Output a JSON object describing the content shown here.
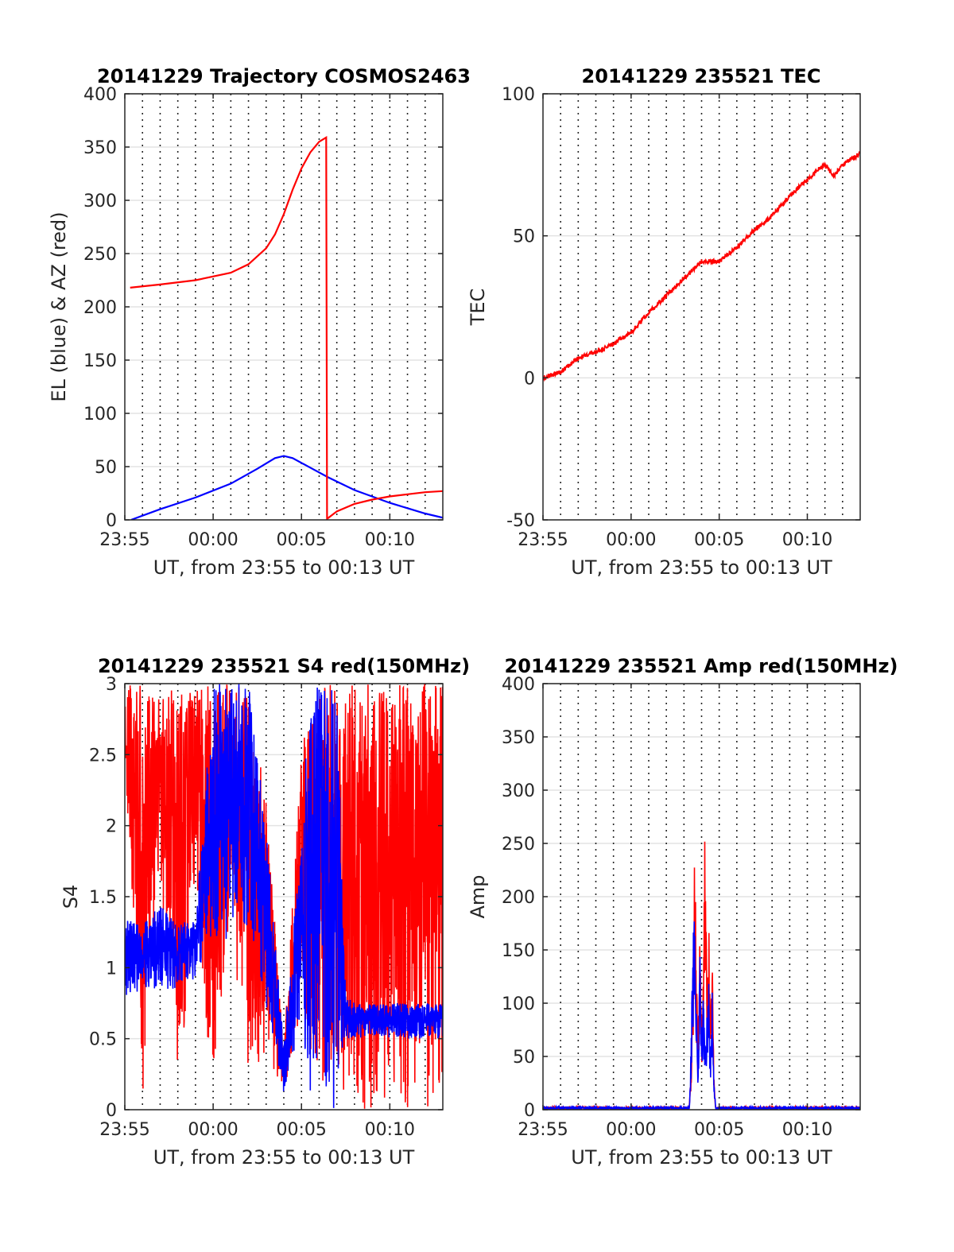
{
  "chart_data": [
    {
      "type": "line",
      "title": "20141229 Trajectory COSMOS2463",
      "xlabel": "UT, from 23:55 to 00:13 UT",
      "ylabel": "EL (blue) & AZ (red)",
      "xlim": [
        0,
        18
      ],
      "ylim": [
        0,
        400
      ],
      "xticks": [
        0,
        5,
        10,
        15
      ],
      "xticklabels": [
        "23:55",
        "00:00",
        "00:05",
        "00:10"
      ],
      "yticks": [
        0,
        50,
        100,
        150,
        200,
        250,
        300,
        350,
        400
      ],
      "yticklabels": [
        "0",
        "50",
        "100",
        "150",
        "200",
        "250",
        "300",
        "350",
        "400"
      ],
      "vgrid_minutes": [
        1,
        2,
        3,
        4,
        5,
        6,
        7,
        8,
        9,
        10,
        11,
        12,
        13,
        14,
        15,
        16,
        17
      ],
      "grid": true,
      "series": [
        {
          "name": "EL (blue)",
          "color": "#0000ff",
          "x": [
            0.35,
            2,
            4,
            6,
            7.5,
            8.5,
            9.0,
            9.5,
            10.5,
            11.5,
            13,
            15,
            17,
            18
          ],
          "y": [
            0,
            10,
            21,
            34,
            48,
            58,
            60,
            58,
            49,
            40,
            28,
            16,
            6,
            2
          ]
        },
        {
          "name": "AZ (red)",
          "color": "#ff0000",
          "x": [
            0.3,
            2,
            4,
            6,
            7,
            8,
            8.5,
            9,
            9.5,
            10,
            10.5,
            11,
            11.4,
            11.45,
            12,
            13,
            14,
            15,
            16,
            17,
            18
          ],
          "y": [
            218,
            221,
            225,
            232,
            240,
            255,
            268,
            287,
            310,
            330,
            345,
            355,
            359,
            1,
            8,
            15,
            19,
            22,
            24,
            26,
            27
          ]
        }
      ]
    },
    {
      "type": "line",
      "title": "20141229 235521 TEC",
      "xlabel": "UT, from 23:55 to 00:13 UT",
      "ylabel": "TEC",
      "xlim": [
        0,
        18
      ],
      "ylim": [
        -50,
        100
      ],
      "xticks": [
        0,
        5,
        10,
        15
      ],
      "xticklabels": [
        "23:55",
        "00:00",
        "00:05",
        "00:10"
      ],
      "yticks": [
        -50,
        0,
        50,
        100
      ],
      "yticklabels": [
        "-50",
        "0",
        "50",
        "100"
      ],
      "vgrid_minutes": [
        1,
        2,
        3,
        4,
        5,
        6,
        7,
        8,
        9,
        10,
        11,
        12,
        13,
        14,
        15,
        16,
        17
      ],
      "grid": true,
      "series": [
        {
          "name": "",
          "color": "#ff0000",
          "x": [
            0,
            1,
            2,
            3,
            4,
            5,
            6,
            7,
            8,
            9,
            10,
            11,
            12,
            13,
            14,
            15,
            16,
            16.5,
            17,
            18
          ],
          "y": [
            0,
            2,
            7,
            9,
            12,
            16,
            23,
            29,
            35,
            41,
            41,
            46,
            52,
            57,
            64,
            70,
            75,
            71,
            75,
            79
          ]
        }
      ]
    },
    {
      "type": "line",
      "title": "20141229 235521 S4 red(150MHz)",
      "xlabel": "UT, from 23:55 to 00:13 UT",
      "ylabel": "S4",
      "xlim": [
        0,
        18
      ],
      "ylim": [
        0,
        3
      ],
      "xticks": [
        0,
        5,
        10,
        15
      ],
      "xticklabels": [
        "23:55",
        "00:00",
        "00:05",
        "00:10"
      ],
      "yticks": [
        0,
        0.5,
        1,
        1.5,
        2,
        2.5,
        3
      ],
      "yticklabels": [
        "0",
        "0.5",
        "1",
        "1.5",
        "2",
        "2.5",
        "3"
      ],
      "vgrid_minutes": [
        1,
        2,
        3,
        4,
        5,
        6,
        7,
        8,
        9,
        10,
        11,
        12,
        13,
        14,
        15,
        16,
        17
      ],
      "grid": true,
      "series": [
        {
          "name": "",
          "color": "#ff0000",
          "x": [
            0,
            1,
            2,
            3,
            4,
            4.5,
            5,
            5.5,
            6,
            6.5,
            7,
            7.5,
            8,
            8.5,
            8.7,
            9,
            9.5,
            10,
            10.5,
            11,
            12,
            13,
            14,
            15,
            16,
            17,
            18
          ],
          "y": [
            2.7,
            2.5,
            2.8,
            2.4,
            2.6,
            1.8,
            2.6,
            1.6,
            2.9,
            2.0,
            1.7,
            1.4,
            0.9,
            0.6,
            0.2,
            0.15,
            0.45,
            1.0,
            2.8,
            2.5,
            2.7,
            2.4,
            2.6,
            2.5,
            2.7,
            2.6,
            2.5
          ],
          "envelope": {
            "x": [
              0,
              1,
              2,
              3,
              4,
              5,
              6,
              7,
              8,
              9,
              10,
              11,
              12,
              13,
              14,
              15,
              16,
              17,
              18
            ],
            "lo": [
              2.4,
              0,
              1.7,
              0,
              1.6,
              0,
              1.4,
              0,
              0.4,
              0.1,
              0.7,
              0,
              0,
              0,
              0,
              0,
              0,
              0,
              0
            ],
            "hi": [
              3,
              3,
              3,
              3,
              3,
              3,
              3,
              3,
              2.2,
              0.4,
              2.6,
              3,
              3,
              3,
              3,
              3,
              3,
              3,
              3
            ]
          }
        },
        {
          "name": "",
          "color": "#0000ff",
          "x": [
            0,
            1,
            2,
            3,
            4,
            4.5,
            5,
            5.5,
            6,
            6.5,
            7,
            7.5,
            8,
            8.5,
            8.7,
            9,
            9.5,
            10,
            10.5,
            11,
            11.5,
            12,
            12.5,
            13,
            14,
            15,
            16,
            17,
            18
          ],
          "y": [
            1.05,
            1.1,
            1.05,
            1.1,
            1.05,
            1.0,
            2.4,
            1.8,
            2.2,
            2.0,
            1.9,
            1.6,
            1.0,
            0.4,
            0.15,
            0.12,
            0.25,
            1.0,
            2.5,
            2.0,
            2.2,
            0.7,
            0.65,
            0.62,
            0.6,
            0.63,
            0.6,
            0.62,
            0.6
          ],
          "envelope": {
            "x": [
              0,
              1,
              2,
              3,
              4,
              5,
              6,
              7,
              8,
              9,
              10,
              10.5,
              11,
              11.5,
              12,
              12.5,
              13,
              14,
              15,
              16,
              17,
              18
            ],
            "lo": [
              0.75,
              0.85,
              0.85,
              0.85,
              0.9,
              1.2,
              1.1,
              1.2,
              0.7,
              0.1,
              0.6,
              0,
              0,
              0,
              0,
              0.5,
              0.5,
              0.5,
              0.5,
              0.5,
              0.5,
              0.5
            ],
            "hi": [
              1.35,
              1.3,
              1.45,
              1.3,
              1.35,
              3,
              3,
              3,
              2.0,
              0.45,
              2.0,
              3,
              3,
              3,
              3,
              0.8,
              0.75,
              0.75,
              0.75,
              0.75,
              0.75,
              0.75
            ]
          }
        }
      ]
    },
    {
      "type": "line",
      "title": "20141229 235521 Amp red(150MHz)",
      "xlabel": "UT, from 23:55 to 00:13 UT",
      "ylabel": "Amp",
      "xlim": [
        0,
        18
      ],
      "ylim": [
        0,
        400
      ],
      "xticks": [
        0,
        5,
        10,
        15
      ],
      "xticklabels": [
        "23:55",
        "00:00",
        "00:05",
        "00:10"
      ],
      "yticks": [
        0,
        50,
        100,
        150,
        200,
        250,
        300,
        350,
        400
      ],
      "yticklabels": [
        "0",
        "50",
        "100",
        "150",
        "200",
        "250",
        "300",
        "350",
        "400"
      ],
      "vgrid_minutes": [
        1,
        2,
        3,
        4,
        5,
        6,
        7,
        8,
        9,
        10,
        11,
        12,
        13,
        14,
        15,
        16,
        17
      ],
      "grid": true,
      "series": [
        {
          "name": "",
          "color": "#ff0000",
          "x": [
            0,
            8.3,
            8.4,
            8.5,
            8.6,
            8.7,
            8.8,
            8.9,
            9.0,
            9.1,
            9.2,
            9.3,
            9.4,
            9.5,
            9.6,
            9.7,
            9.8,
            18
          ],
          "y": [
            0,
            0,
            40,
            120,
            282,
            140,
            60,
            180,
            90,
            150,
            303,
            100,
            200,
            70,
            150,
            40,
            0,
            0
          ]
        },
        {
          "name": "",
          "color": "#0000ff",
          "x": [
            0,
            8.3,
            8.4,
            8.5,
            8.6,
            8.7,
            8.8,
            8.9,
            9.0,
            9.1,
            9.2,
            9.3,
            9.4,
            9.5,
            9.6,
            9.7,
            9.8,
            18
          ],
          "y": [
            0,
            0,
            60,
            150,
            212,
            110,
            40,
            160,
            70,
            120,
            60,
            90,
            130,
            50,
            110,
            30,
            0,
            0
          ]
        }
      ]
    }
  ]
}
